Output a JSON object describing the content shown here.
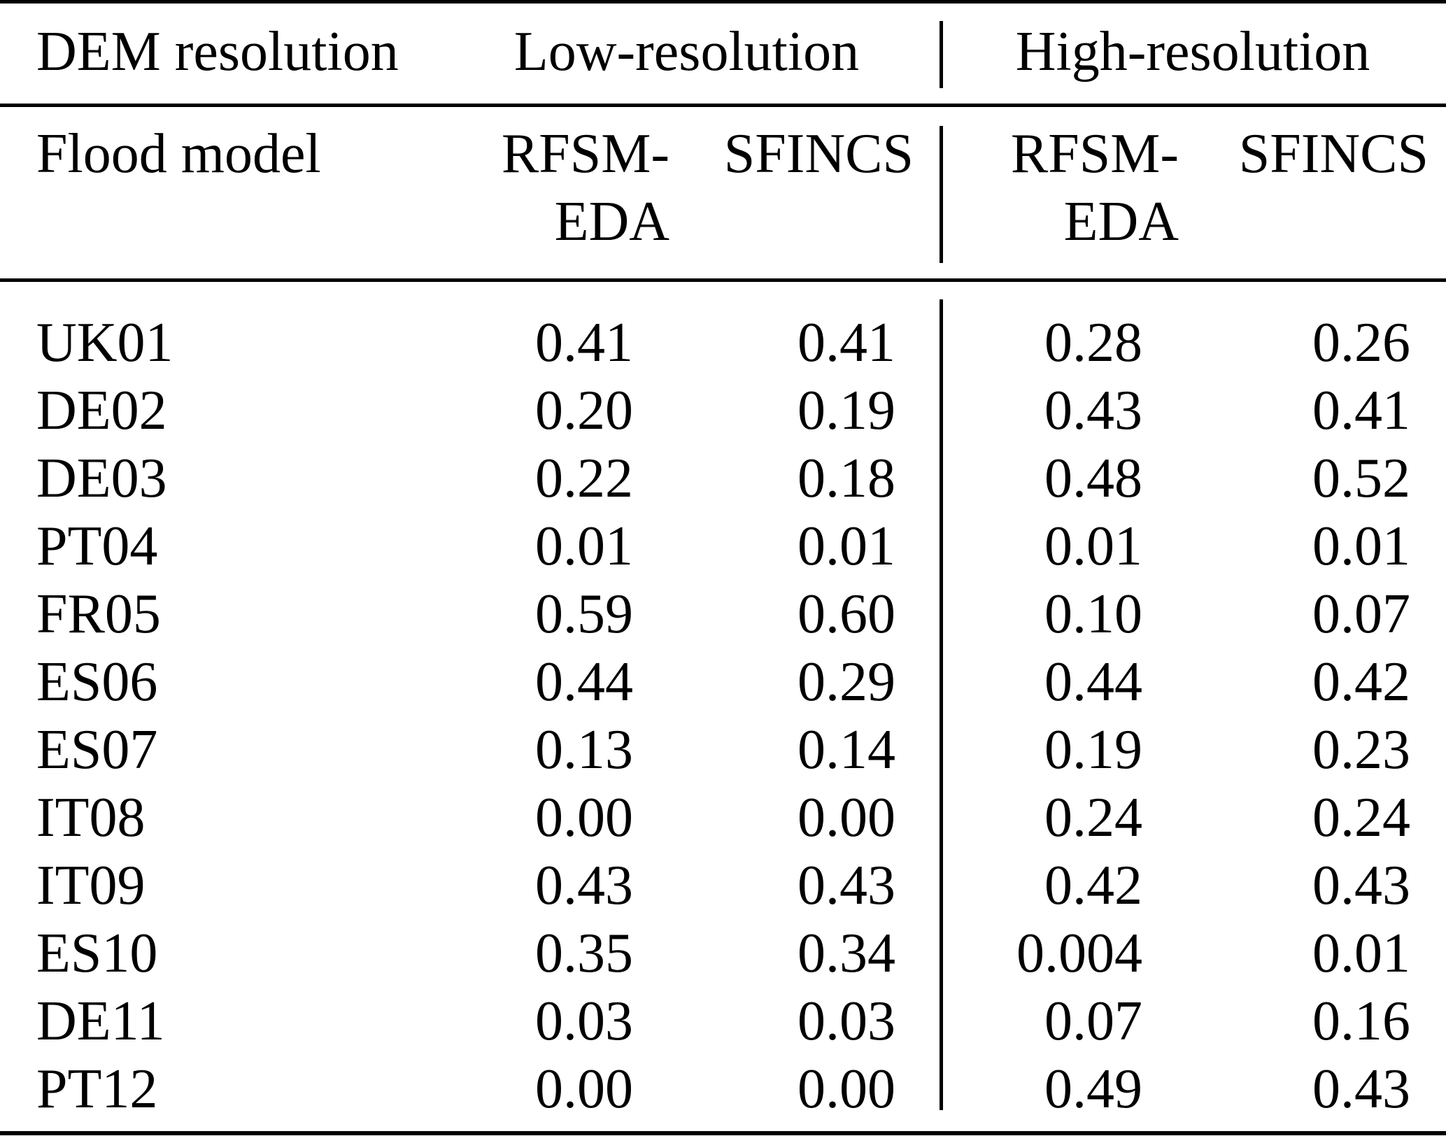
{
  "figure": {
    "kind": "academic-table"
  },
  "colors": {
    "text": "#000000",
    "background": "#ffffff",
    "rule": "#000000"
  },
  "table": {
    "header_row1": {
      "dem_resolution": "DEM resolution",
      "low_resolution": "Low-resolution",
      "high_resolution": "High-resolution"
    },
    "header_row2": {
      "flood_model": "Flood model",
      "low": {
        "model1_line1": "RFSM-",
        "model1_line2": "EDA",
        "model2": "SFINCS"
      },
      "high": {
        "model1_line1": "RFSM-",
        "model1_line2": "EDA",
        "model2": "SFINCS"
      }
    },
    "rows": [
      {
        "label": "UK01",
        "values": [
          "0.41",
          "0.41",
          "0.28",
          "0.26"
        ]
      },
      {
        "label": "DE02",
        "values": [
          "0.20",
          "0.19",
          "0.43",
          "0.41"
        ]
      },
      {
        "label": "DE03",
        "values": [
          "0.22",
          "0.18",
          "0.48",
          "0.52"
        ]
      },
      {
        "label": "PT04",
        "values": [
          "0.01",
          "0.01",
          "0.01",
          "0.01"
        ]
      },
      {
        "label": "FR05",
        "values": [
          "0.59",
          "0.60",
          "0.10",
          "0.07"
        ]
      },
      {
        "label": "ES06",
        "values": [
          "0.44",
          "0.29",
          "0.44",
          "0.42"
        ]
      },
      {
        "label": "ES07",
        "values": [
          "0.13",
          "0.14",
          "0.19",
          "0.23"
        ]
      },
      {
        "label": "IT08",
        "values": [
          "0.00",
          "0.00",
          "0.24",
          "0.24"
        ]
      },
      {
        "label": "IT09",
        "values": [
          "0.43",
          "0.43",
          "0.42",
          "0.43"
        ]
      },
      {
        "label": "ES10",
        "values": [
          "0.35",
          "0.34",
          "0.004",
          "0.01"
        ]
      },
      {
        "label": "DE11",
        "values": [
          "0.03",
          "0.03",
          "0.07",
          "0.16"
        ]
      },
      {
        "label": "PT12",
        "values": [
          "0.00",
          "0.00",
          "0.49",
          "0.43"
        ]
      }
    ]
  }
}
